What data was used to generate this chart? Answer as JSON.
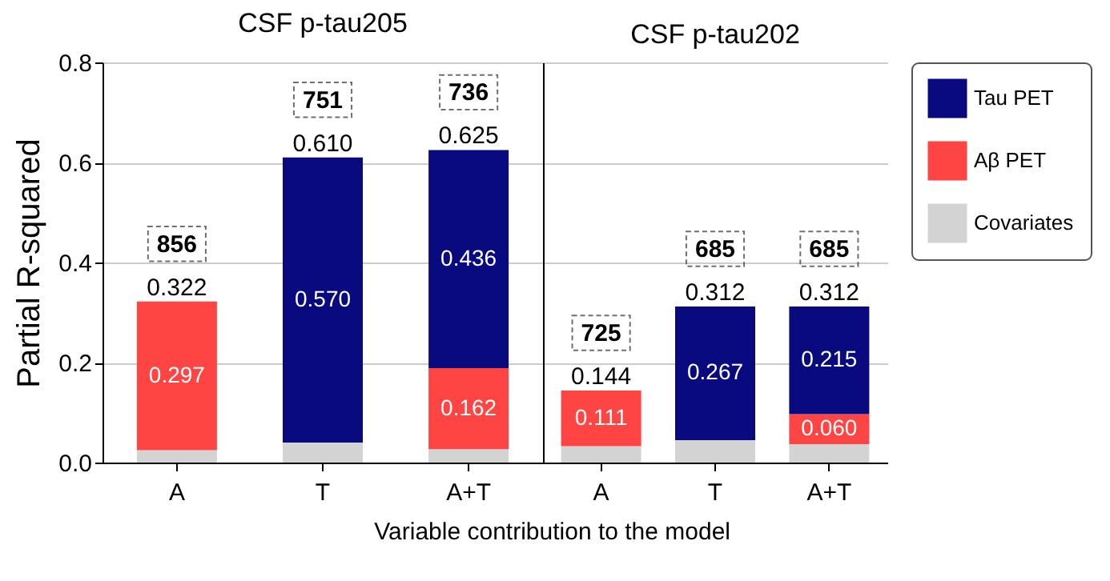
{
  "chart_data": [
    {
      "type": "bar",
      "title": "CSF p-tau205",
      "ylabel": "Partial R-squared",
      "xlabel": "Variable contribution to the model",
      "categories": [
        "A",
        "T",
        "A+T"
      ],
      "stacked": true,
      "series": [
        {
          "name": "Covariates",
          "color": "#d3d3d3",
          "values": [
            0.025,
            0.04,
            0.027
          ],
          "value_labels": [
            null,
            null,
            null
          ]
        },
        {
          "name": "Aβ PET",
          "color": "#ff4444",
          "values": [
            0.297,
            null,
            0.162
          ],
          "value_labels": [
            "0.297",
            null,
            "0.162"
          ]
        },
        {
          "name": "Tau PET",
          "color": "#0a0a80",
          "values": [
            null,
            0.57,
            0.436
          ],
          "value_labels": [
            null,
            "0.570",
            "0.436"
          ]
        }
      ],
      "totals": [
        "0.322",
        "0.610",
        "0.625"
      ],
      "annotations": [
        {
          "text": "856",
          "x": "A",
          "y": 0.322
        },
        {
          "text": "751",
          "x": "T",
          "y": 0.61
        },
        {
          "text": "736",
          "x": "A+T",
          "y": 0.625
        }
      ],
      "ylim": [
        0,
        0.8
      ],
      "yticks": [
        {
          "value": 0,
          "label": "0.0"
        },
        0.2,
        0.4,
        0.6,
        0.8
      ],
      "grid": "y",
      "legend": "right"
    },
    {
      "type": "bar",
      "title": "CSF p-tau202",
      "categories": [
        "A",
        "T",
        "A+T"
      ],
      "stacked": true,
      "series": [
        {
          "name": "Covariates",
          "color": "#d3d3d3",
          "values": [
            0.033,
            0.045,
            0.037
          ],
          "value_labels": [
            null,
            null,
            null
          ]
        },
        {
          "name": "Aβ PET",
          "color": "#ff4444",
          "values": [
            0.111,
            null,
            0.06
          ],
          "value_labels": [
            "0.111",
            null,
            "0.060"
          ]
        },
        {
          "name": "Tau PET",
          "color": "#0a0a80",
          "values": [
            null,
            0.267,
            0.215
          ],
          "value_labels": [
            null,
            "0.267",
            "0.215"
          ]
        }
      ],
      "totals": [
        "0.144",
        "0.312",
        "0.312"
      ],
      "annotations": [
        {
          "text": "725",
          "x": "A",
          "y": 0.144
        },
        {
          "text": "685",
          "x": "T",
          "y": 0.312
        },
        {
          "text": "685",
          "x": "A+T",
          "y": 0.312
        }
      ],
      "ylim": [
        0,
        0.8
      ],
      "yticks": [
        0,
        0.2,
        0.4,
        0.6,
        0.8
      ],
      "grid": "y",
      "tick_labels": "x",
      "legend": "right"
    }
  ]
}
